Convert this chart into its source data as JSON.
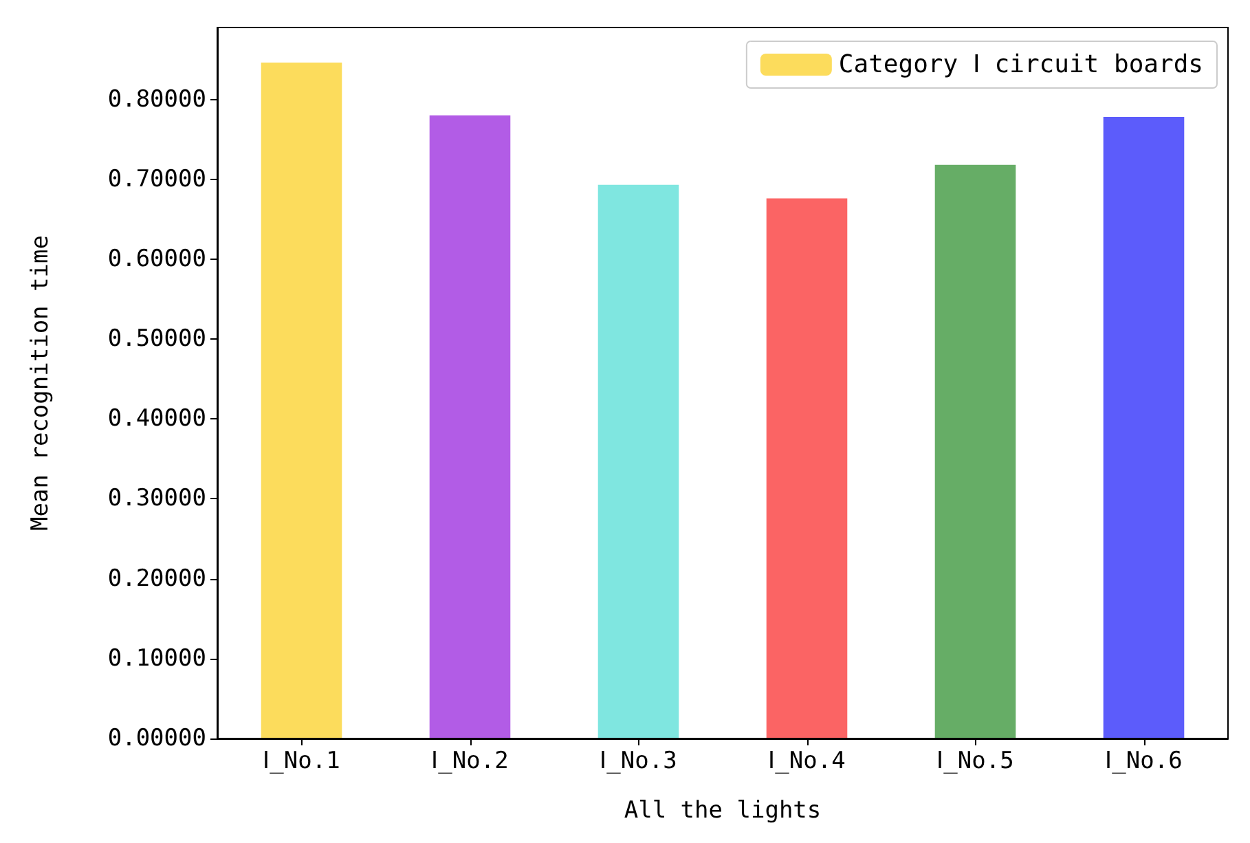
{
  "chart_data": {
    "type": "bar",
    "xlabel": "All the lights",
    "ylabel": "Mean recognition time",
    "categories": [
      "Ⅰ_No.1",
      "Ⅰ_No.2",
      "Ⅰ_No.3",
      "Ⅰ_No.4",
      "Ⅰ_No.5",
      "Ⅰ_No.6"
    ],
    "series": [
      {
        "name": "Category Ⅰ circuit boards",
        "color": "#fcdc5c",
        "colors": [
          "#fcdc5c",
          "#b25ce6",
          "#7fe6e0",
          "#fb6464",
          "#66ad66",
          "#5c5cfb"
        ],
        "values": [
          0.846,
          0.78,
          0.693,
          0.676,
          0.718,
          0.778
        ]
      }
    ],
    "ylim": [
      0,
      0.89
    ],
    "yticks": [
      {
        "value": 0,
        "label": "0.00000"
      },
      {
        "value": 0.1,
        "label": "0.10000"
      },
      {
        "value": 0.2,
        "label": "0.20000"
      },
      {
        "value": 0.3,
        "label": "0.30000"
      },
      {
        "value": 0.4,
        "label": "0.40000"
      },
      {
        "value": 0.5,
        "label": "0.50000"
      },
      {
        "value": 0.6,
        "label": "0.60000"
      },
      {
        "value": 0.7,
        "label": "0.70000"
      },
      {
        "value": 0.8,
        "label": "0.80000"
      }
    ],
    "grid": false,
    "legend": "top right"
  }
}
